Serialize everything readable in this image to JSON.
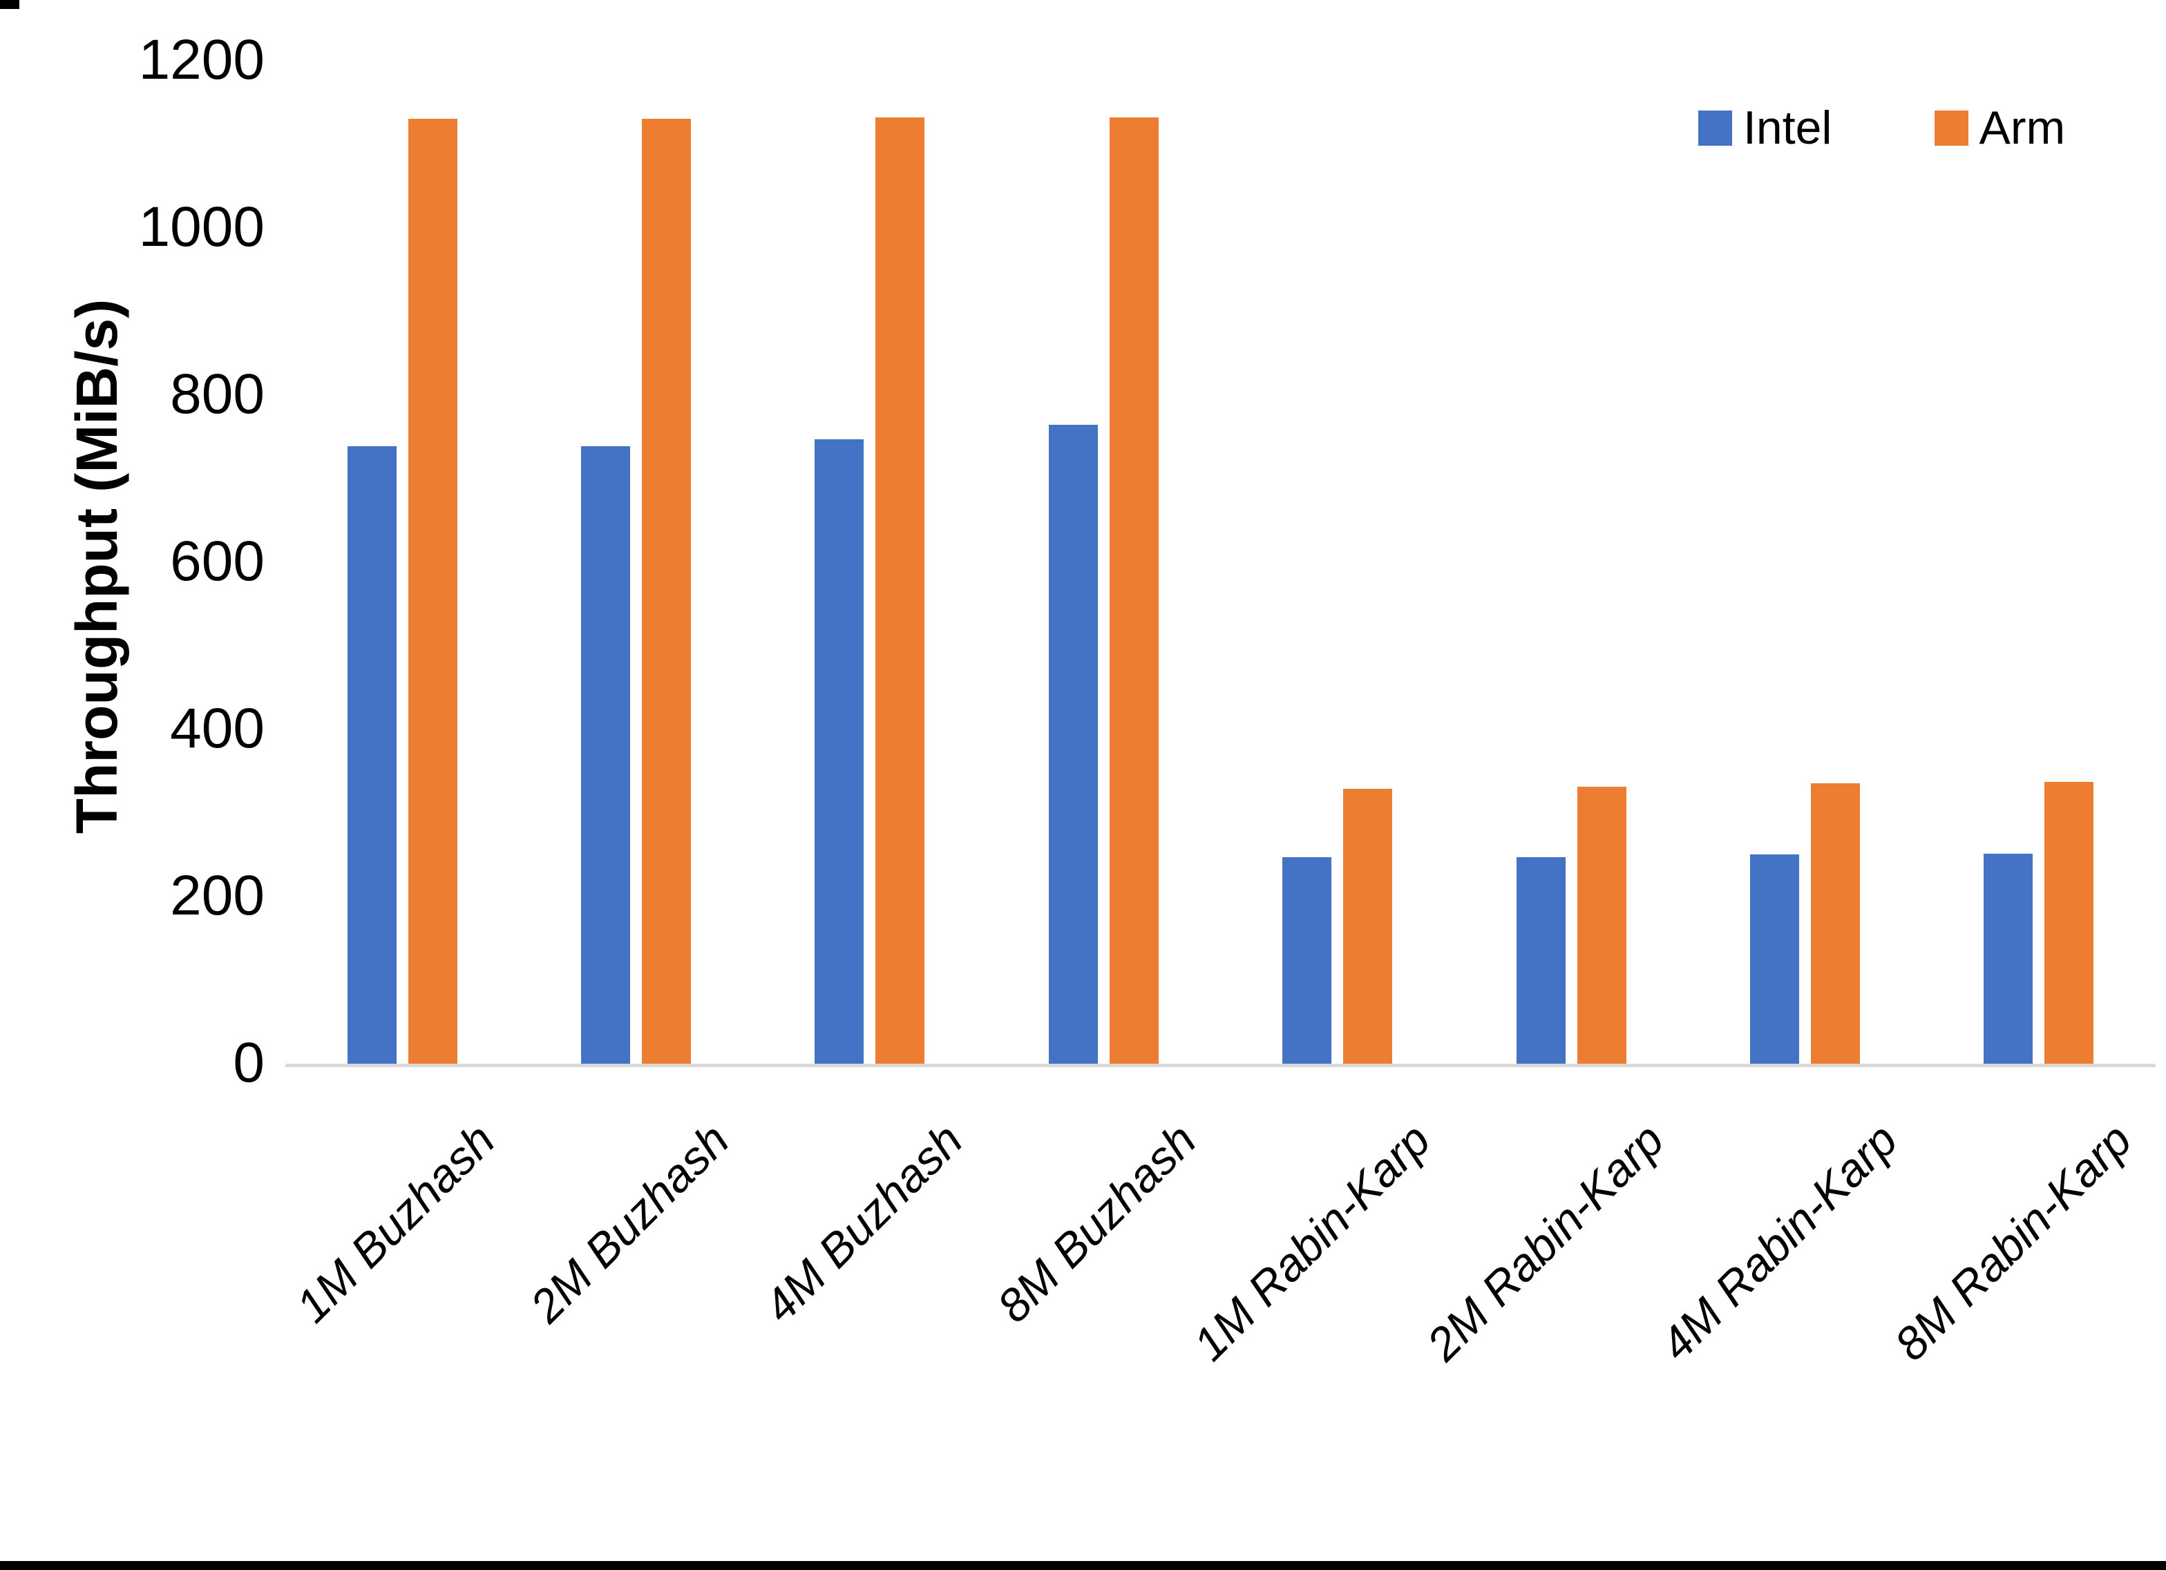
{
  "chart_data": {
    "type": "bar",
    "title": "",
    "xlabel": "",
    "ylabel": "Throughput (MiB/s)",
    "ylim": [
      0,
      1200
    ],
    "yticks": [
      0,
      200,
      400,
      600,
      800,
      1000,
      1200
    ],
    "grid": false,
    "legend_position": "top-right",
    "axis_line_color": "#d9d9d9",
    "categories": [
      "1M Buzhash",
      "2M Buzhash",
      "4M Buzhash",
      "8M Buzhash",
      "1M Rabin-Karp",
      "2M Rabin-Karp",
      "4M Rabin-Karp",
      "8M Rabin-Karp"
    ],
    "series": [
      {
        "name": "Intel",
        "color": "#4472c4",
        "values": [
          740,
          740,
          748,
          765,
          248,
          248,
          251,
          252
        ]
      },
      {
        "name": "Arm",
        "color": "#ed7d31",
        "values": [
          1131,
          1131,
          1133,
          1133,
          330,
          332,
          336,
          338
        ]
      }
    ]
  }
}
